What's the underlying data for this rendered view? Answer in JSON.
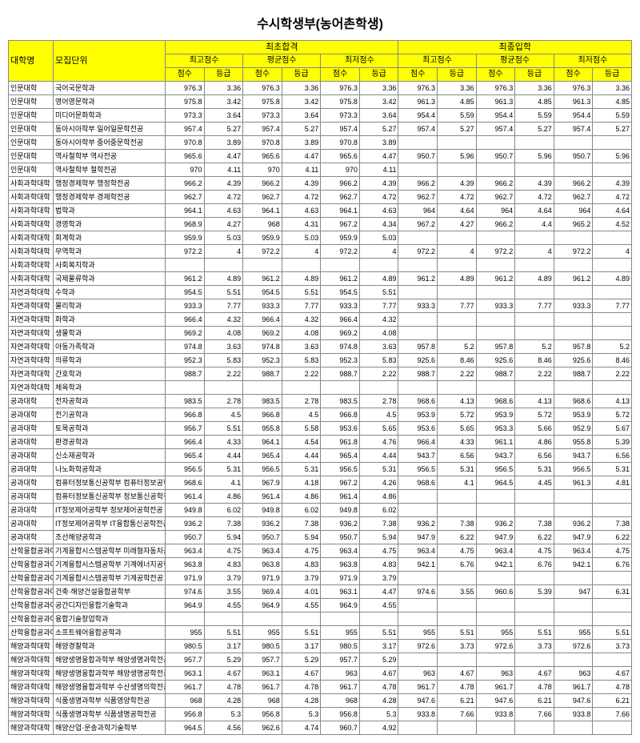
{
  "title": "수시학생부(농어촌학생)",
  "headers": {
    "dept": "대학명",
    "unit": "모집단위",
    "group1": "최초합격",
    "group2": "최종입학",
    "sub": [
      "최고점수",
      "평균점수",
      "최저점수"
    ],
    "leaf": [
      "점수",
      "등급"
    ]
  },
  "style": {
    "header_bg": "#ffff00",
    "border": "#888888",
    "title_fontsize": 16,
    "cell_fontsize": 9
  },
  "rows": [
    {
      "d": "인문대학",
      "u": "국어국문학과",
      "v": [
        "976.3",
        "3.36",
        "976.3",
        "3.36",
        "976.3",
        "3.36",
        "976.3",
        "3.36",
        "976.3",
        "3.36",
        "976.3",
        "3.36"
      ]
    },
    {
      "d": "인문대학",
      "u": "영어영문학과",
      "v": [
        "975.8",
        "3.42",
        "975.8",
        "3.42",
        "975.8",
        "3.42",
        "961.3",
        "4.85",
        "961.3",
        "4.85",
        "961.3",
        "4.85"
      ]
    },
    {
      "d": "인문대학",
      "u": "미디어문화학과",
      "v": [
        "973.3",
        "3.64",
        "973.3",
        "3.64",
        "973.3",
        "3.64",
        "954.4",
        "5.59",
        "954.4",
        "5.59",
        "954.4",
        "5.59"
      ]
    },
    {
      "d": "인문대학",
      "u": "동아시아학부 일어일문학전공",
      "v": [
        "957.4",
        "5.27",
        "957.4",
        "5.27",
        "957.4",
        "5.27",
        "957.4",
        "5.27",
        "957.4",
        "5.27",
        "957.4",
        "5.27"
      ]
    },
    {
      "d": "인문대학",
      "u": "동아시아학부 중어중문학전공",
      "v": [
        "970.8",
        "3.89",
        "970.8",
        "3.89",
        "970.8",
        "3.89",
        "",
        "",
        "",
        "",
        "",
        ""
      ]
    },
    {
      "d": "인문대학",
      "u": "역사철학부 역사전공",
      "v": [
        "965.6",
        "4.47",
        "965.6",
        "4.47",
        "965.6",
        "4.47",
        "950.7",
        "5.96",
        "950.7",
        "5.96",
        "950.7",
        "5.96"
      ]
    },
    {
      "d": "인문대학",
      "u": "역사철학부 철학전공",
      "v": [
        "970",
        "4.11",
        "970",
        "4.11",
        "970",
        "4.11",
        "",
        "",
        "",
        "",
        "",
        ""
      ]
    },
    {
      "d": "사회과학대학",
      "u": "행정경제학부 행정학전공",
      "v": [
        "966.2",
        "4.39",
        "966.2",
        "4.39",
        "966.2",
        "4.39",
        "966.2",
        "4.39",
        "966.2",
        "4.39",
        "966.2",
        "4.39"
      ]
    },
    {
      "d": "사회과학대학",
      "u": "행정경제학부 경제학전공",
      "v": [
        "962.7",
        "4.72",
        "962.7",
        "4.72",
        "962.7",
        "4.72",
        "962.7",
        "4.72",
        "962.7",
        "4.72",
        "962.7",
        "4.72"
      ]
    },
    {
      "d": "사회과학대학",
      "u": "법학과",
      "v": [
        "964.1",
        "4.63",
        "964.1",
        "4.63",
        "964.1",
        "4.63",
        "964",
        "4.64",
        "964",
        "4.64",
        "964",
        "4.64"
      ]
    },
    {
      "d": "사회과학대학",
      "u": "경영학과",
      "v": [
        "968.9",
        "4.27",
        "968",
        "4.31",
        "967.2",
        "4.34",
        "967.2",
        "4.27",
        "966.2",
        "4.4",
        "965.2",
        "4.52"
      ]
    },
    {
      "d": "사회과학대학",
      "u": "회계학과",
      "v": [
        "959.9",
        "5.03",
        "959.9",
        "5.03",
        "959.9",
        "5.03",
        "",
        "",
        "",
        "",
        "",
        ""
      ]
    },
    {
      "d": "사회과학대학",
      "u": "무역학과",
      "v": [
        "972.2",
        "4",
        "972.2",
        "4",
        "972.2",
        "4",
        "972.2",
        "4",
        "972.2",
        "4",
        "972.2",
        "4"
      ]
    },
    {
      "d": "사회과학대학",
      "u": "사회복지학과",
      "v": [
        "",
        "",
        "",
        "",
        "",
        "",
        "",
        "",
        "",
        "",
        "",
        ""
      ]
    },
    {
      "d": "사회과학대학",
      "u": "국제물류학과",
      "v": [
        "961.2",
        "4.89",
        "961.2",
        "4.89",
        "961.2",
        "4.89",
        "961.2",
        "4.89",
        "961.2",
        "4.89",
        "961.2",
        "4.89"
      ]
    },
    {
      "d": "자연과학대학",
      "u": "수학과",
      "v": [
        "954.5",
        "5.51",
        "954.5",
        "5.51",
        "954.5",
        "5.51",
        "",
        "",
        "",
        "",
        "",
        ""
      ]
    },
    {
      "d": "자연과학대학",
      "u": "물리학과",
      "v": [
        "933.3",
        "7.77",
        "933.3",
        "7.77",
        "933.3",
        "7.77",
        "933.3",
        "7.77",
        "933.3",
        "7.77",
        "933.3",
        "7.77"
      ]
    },
    {
      "d": "자연과학대학",
      "u": "화학과",
      "v": [
        "966.4",
        "4.32",
        "966.4",
        "4.32",
        "966.4",
        "4.32",
        "",
        "",
        "",
        "",
        "",
        ""
      ]
    },
    {
      "d": "자연과학대학",
      "u": "생물학과",
      "v": [
        "969.2",
        "4.08",
        "969.2",
        "4.08",
        "969.2",
        "4.08",
        "",
        "",
        "",
        "",
        "",
        ""
      ]
    },
    {
      "d": "자연과학대학",
      "u": "아동가족학과",
      "v": [
        "974.8",
        "3.63",
        "974.8",
        "3.63",
        "974.8",
        "3.63",
        "957.8",
        "5.2",
        "957.8",
        "5.2",
        "957.8",
        "5.2"
      ]
    },
    {
      "d": "자연과학대학",
      "u": "의류학과",
      "v": [
        "952.3",
        "5.83",
        "952.3",
        "5.83",
        "952.3",
        "5.83",
        "925.6",
        "8.46",
        "925.6",
        "8.46",
        "925.6",
        "8.46"
      ]
    },
    {
      "d": "자연과학대학",
      "u": "간호학과",
      "v": [
        "988.7",
        "2.22",
        "988.7",
        "2.22",
        "988.7",
        "2.22",
        "988.7",
        "2.22",
        "988.7",
        "2.22",
        "988.7",
        "2.22"
      ]
    },
    {
      "d": "자연과학대학",
      "u": "체육학과",
      "v": [
        "",
        "",
        "",
        "",
        "",
        "",
        "",
        "",
        "",
        "",
        "",
        ""
      ]
    },
    {
      "d": "공과대학",
      "u": "전자공학과",
      "v": [
        "983.5",
        "2.78",
        "983.5",
        "2.78",
        "983.5",
        "2.78",
        "968.6",
        "4.13",
        "968.6",
        "4.13",
        "968.6",
        "4.13"
      ]
    },
    {
      "d": "공과대학",
      "u": "전기공학과",
      "v": [
        "966.8",
        "4.5",
        "966.8",
        "4.5",
        "966.8",
        "4.5",
        "953.9",
        "5.72",
        "953.9",
        "5.72",
        "953.9",
        "5.72"
      ]
    },
    {
      "d": "공과대학",
      "u": "토목공학과",
      "v": [
        "956.7",
        "5.51",
        "955.8",
        "5.58",
        "953.6",
        "5.65",
        "953.6",
        "5.65",
        "953.3",
        "5.66",
        "952.9",
        "5.67"
      ]
    },
    {
      "d": "공과대학",
      "u": "환경공학과",
      "v": [
        "966.4",
        "4.33",
        "964.1",
        "4.54",
        "961.8",
        "4.76",
        "966.4",
        "4.33",
        "961.1",
        "4.86",
        "955.8",
        "5.39"
      ]
    },
    {
      "d": "공과대학",
      "u": "신소재공학과",
      "v": [
        "965.4",
        "4.44",
        "965.4",
        "4.44",
        "965.4",
        "4.44",
        "943.7",
        "6.56",
        "943.7",
        "6.56",
        "943.7",
        "6.56"
      ]
    },
    {
      "d": "공과대학",
      "u": "나노화학공학과",
      "v": [
        "956.5",
        "5.31",
        "956.5",
        "5.31",
        "956.5",
        "5.31",
        "956.5",
        "5.31",
        "956.5",
        "5.31",
        "956.5",
        "5.31"
      ]
    },
    {
      "d": "공과대학",
      "u": "컴퓨터정보통신공학부 컴퓨터정보공학전공",
      "v": [
        "968.6",
        "4.1",
        "967.9",
        "4.18",
        "967.2",
        "4.26",
        "968.6",
        "4.1",
        "964.5",
        "4.45",
        "961.3",
        "4.81"
      ]
    },
    {
      "d": "공과대학",
      "u": "컴퓨터정보통신공학부 정보통신공학전공",
      "v": [
        "961.4",
        "4.86",
        "961.4",
        "4.86",
        "961.4",
        "4.86",
        "",
        "",
        "",
        "",
        "",
        ""
      ]
    },
    {
      "d": "공과대학",
      "u": "IT정보제어공학부 정보제어공학전공",
      "v": [
        "949.8",
        "6.02",
        "949.8",
        "6.02",
        "949.8",
        "6.02",
        "",
        "",
        "",
        "",
        "",
        ""
      ]
    },
    {
      "d": "공과대학",
      "u": "IT정보제어공학부 IT융합통신공학전공",
      "v": [
        "936.2",
        "7.38",
        "936.2",
        "7.38",
        "936.2",
        "7.38",
        "936.2",
        "7.38",
        "936.2",
        "7.38",
        "936.2",
        "7.38"
      ]
    },
    {
      "d": "공과대학",
      "u": "조선해양공학과",
      "v": [
        "950.7",
        "5.94",
        "950.7",
        "5.94",
        "950.7",
        "5.94",
        "947.9",
        "6.22",
        "947.9",
        "6.22",
        "947.9",
        "6.22"
      ]
    },
    {
      "d": "산학융합공과대학",
      "u": "기계융합시스템공학부 미래형자동차공학전공",
      "v": [
        "963.4",
        "4.75",
        "963.4",
        "4.75",
        "963.4",
        "4.75",
        "963.4",
        "4.75",
        "963.4",
        "4.75",
        "963.4",
        "4.75"
      ]
    },
    {
      "d": "산학융합공과대학",
      "u": "기계융합시스템공학부 기계에너지공학전공",
      "v": [
        "963.8",
        "4.83",
        "963.8",
        "4.83",
        "963.8",
        "4.83",
        "942.1",
        "6.76",
        "942.1",
        "6.76",
        "942.1",
        "6.76"
      ]
    },
    {
      "d": "산학융합공과대학",
      "u": "기계융합시스템공학부 기계공학전공",
      "v": [
        "971.9",
        "3.79",
        "971.9",
        "3.79",
        "971.9",
        "3.79",
        "",
        "",
        "",
        "",
        "",
        ""
      ]
    },
    {
      "d": "산학융합공과대학",
      "u": "건축·해양건설융합공학부",
      "v": [
        "974.6",
        "3.55",
        "969.4",
        "4.01",
        "963.1",
        "4.47",
        "974.6",
        "3.55",
        "960.6",
        "5.39",
        "947",
        "6.31"
      ]
    },
    {
      "d": "산학융합공과대학",
      "u": "공간디자인융합기술학과",
      "v": [
        "964.9",
        "4.55",
        "964.9",
        "4.55",
        "964.9",
        "4.55",
        "",
        "",
        "",
        "",
        "",
        ""
      ]
    },
    {
      "d": "산학융합공과대학",
      "u": "융합기술창업학과",
      "v": [
        "",
        "",
        "",
        "",
        "",
        "",
        "",
        "",
        "",
        "",
        "",
        ""
      ]
    },
    {
      "d": "산학융합공과대학",
      "u": "소프트웨어융합공학과",
      "v": [
        "955",
        "5.51",
        "955",
        "5.51",
        "955",
        "5.51",
        "955",
        "5.51",
        "955",
        "5.51",
        "955",
        "5.51"
      ]
    },
    {
      "d": "해양과학대학",
      "u": "해양경찰학과",
      "v": [
        "980.5",
        "3.17",
        "980.5",
        "3.17",
        "980.5",
        "3.17",
        "972.6",
        "3.73",
        "972.6",
        "3.73",
        "972.6",
        "3.73"
      ]
    },
    {
      "d": "해양과학대학",
      "u": "해양생명융합과학부 해양생명과학전공",
      "v": [
        "957.7",
        "5.29",
        "957.7",
        "5.29",
        "957.7",
        "5.29",
        "",
        "",
        "",
        "",
        "",
        ""
      ]
    },
    {
      "d": "해양과학대학",
      "u": "해양생명융합과학부 해양생명공학전공",
      "v": [
        "963.1",
        "4.67",
        "963.1",
        "4.67",
        "963",
        "4.67",
        "963",
        "4.67",
        "963",
        "4.67",
        "963",
        "4.67"
      ]
    },
    {
      "d": "해양과학대학",
      "u": "해양생명융합과학부 수산생명의학전공",
      "v": [
        "961.7",
        "4.78",
        "961.7",
        "4.78",
        "961.7",
        "4.78",
        "961.7",
        "4.78",
        "961.7",
        "4.78",
        "961.7",
        "4.78"
      ]
    },
    {
      "d": "해양과학대학",
      "u": "식품생명과학부 식품영양학전공",
      "v": [
        "968",
        "4.28",
        "968",
        "4.28",
        "968",
        "4.28",
        "947.6",
        "6.21",
        "947.6",
        "6.21",
        "947.6",
        "6.21"
      ]
    },
    {
      "d": "해양과학대학",
      "u": "식품생명과학부 식품생명공학전공",
      "v": [
        "956.8",
        "5.3",
        "956.8",
        "5.3",
        "956.8",
        "5.3",
        "933.8",
        "7.66",
        "933.8",
        "7.66",
        "933.8",
        "7.66"
      ]
    },
    {
      "d": "해양과학대학",
      "u": "해양산업·운송과학기술학부",
      "v": [
        "964.5",
        "4.56",
        "962.6",
        "4.74",
        "960.7",
        "4.92",
        "",
        "",
        "",
        "",
        "",
        ""
      ]
    }
  ]
}
